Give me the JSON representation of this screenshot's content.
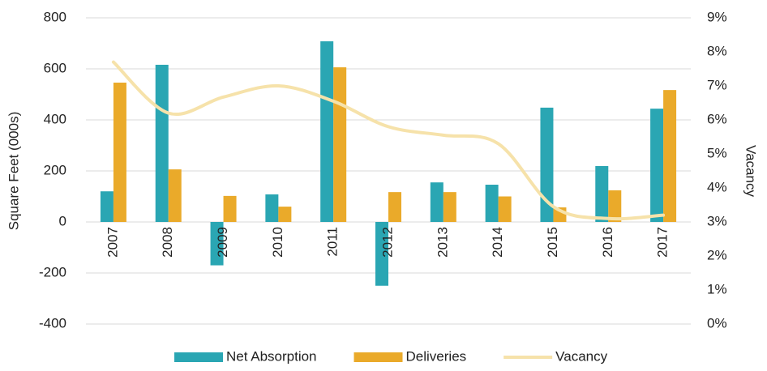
{
  "chart_data": {
    "type": "bar_line",
    "categories": [
      "2007",
      "2008",
      "2009",
      "2010",
      "2011",
      "2012",
      "2013",
      "2014",
      "2015",
      "2016",
      "2017"
    ],
    "series": [
      {
        "name": "Net Absorption",
        "type": "bar",
        "color": "#2aa6b3",
        "values": [
          120,
          616,
          -170,
          108,
          708,
          -250,
          155,
          146,
          448,
          219,
          444
        ]
      },
      {
        "name": "Deliveries",
        "type": "bar",
        "color": "#eaaa2a",
        "values": [
          546,
          206,
          102,
          60,
          606,
          117,
          117,
          100,
          57,
          124,
          517
        ]
      },
      {
        "name": "Vacancy",
        "type": "line",
        "axis": "y2",
        "color": "#f6e2aa",
        "values": [
          7.7,
          6.2,
          6.67,
          7.0,
          6.55,
          5.8,
          5.55,
          5.3,
          3.45,
          3.1,
          3.2
        ]
      }
    ],
    "ylabel": "Square Feet (000s)",
    "y2label": "Vacancy",
    "ylim": [
      -400,
      800
    ],
    "yticks": [
      -400,
      -200,
      0,
      200,
      400,
      600,
      800
    ],
    "y2lim": [
      0,
      9
    ],
    "y2ticks": [
      {
        "value": 0,
        "label": "0%"
      },
      {
        "value": 1,
        "label": "1%"
      },
      {
        "value": 2,
        "label": "2%"
      },
      {
        "value": 3,
        "label": "3%"
      },
      {
        "value": 4,
        "label": "4%"
      },
      {
        "value": 5,
        "label": "5%"
      },
      {
        "value": 6,
        "label": "6%"
      },
      {
        "value": 7,
        "label": "7%"
      },
      {
        "value": 8,
        "label": "8%"
      },
      {
        "value": 9,
        "label": "9%"
      }
    ],
    "grid": true,
    "legend": "bottom"
  }
}
